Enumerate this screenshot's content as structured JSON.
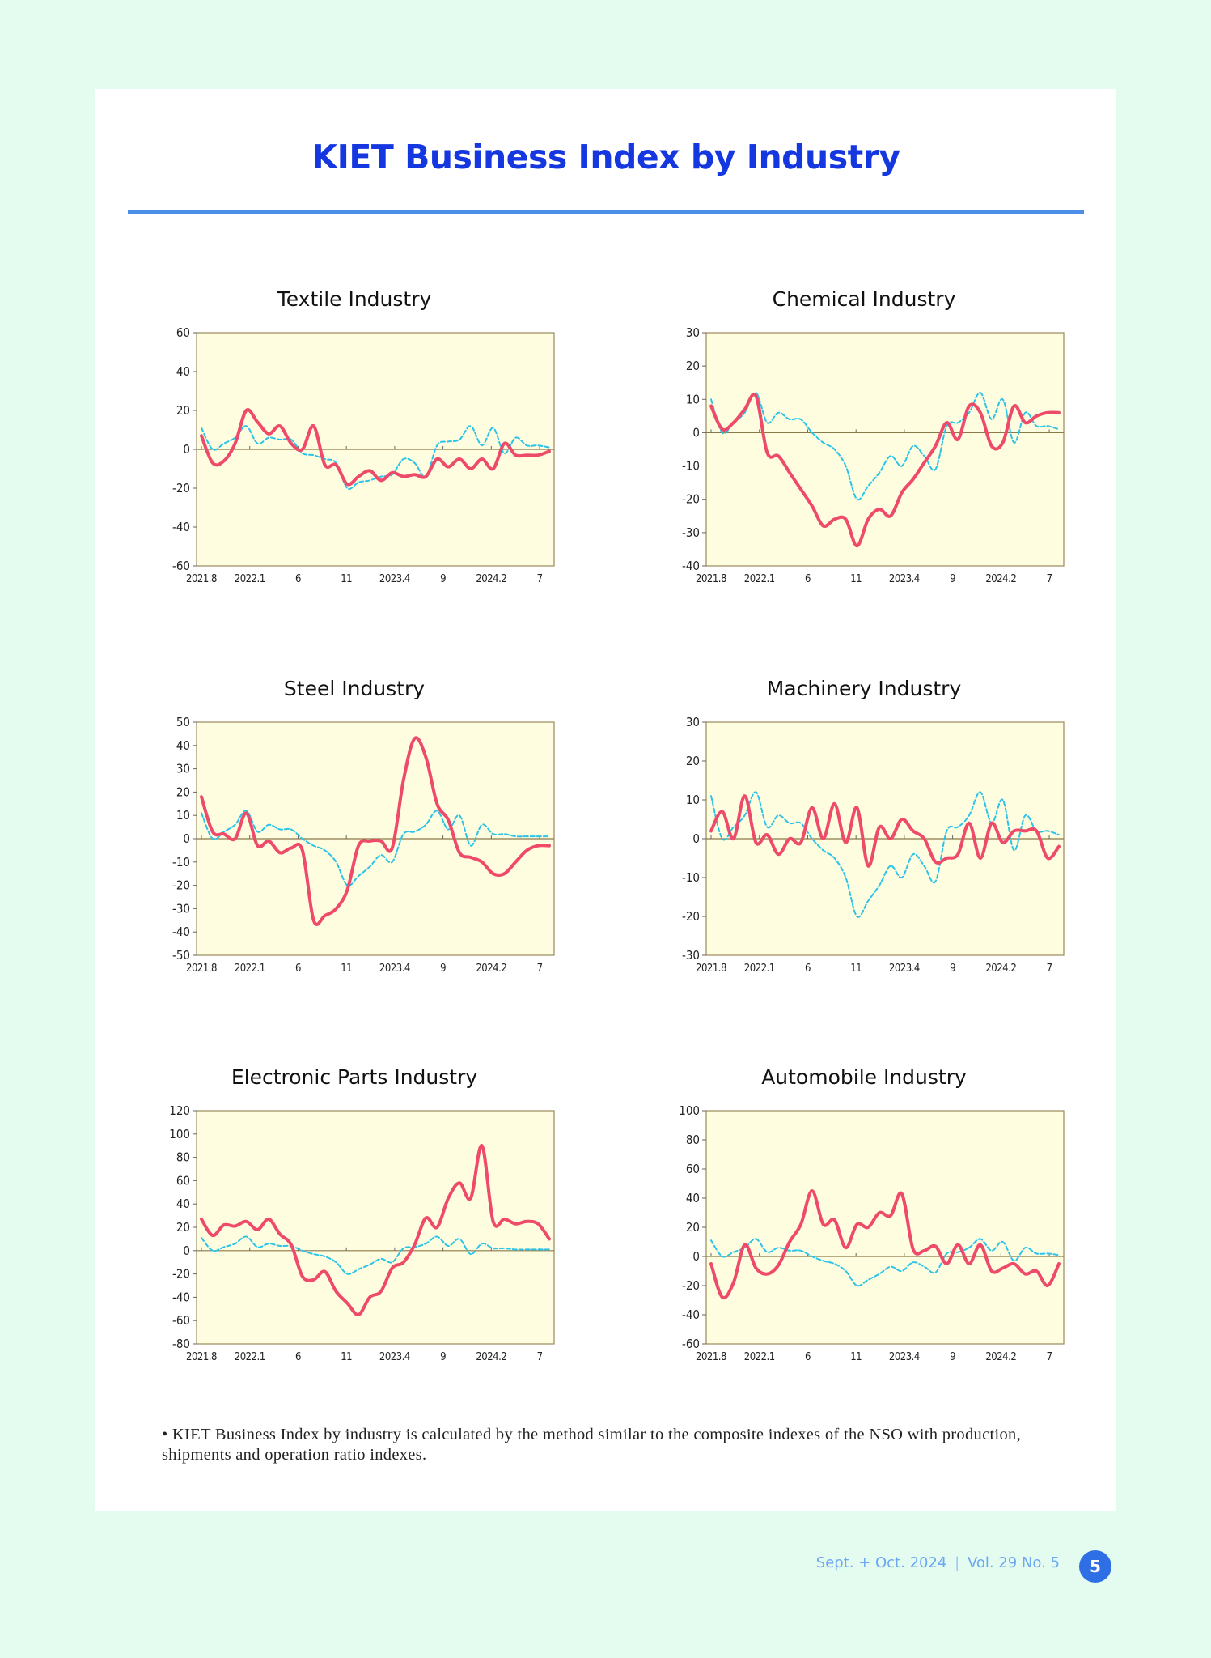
{
  "page": {
    "title": "KIET Business Index by Industry",
    "footnote_bullet": "•",
    "footnote": "KIET Business Index by industry is calculated by the method similar to the composite indexes of the NSO with production, shipments and operation ratio indexes.",
    "footer_issue": "Sept. + Oct. 2024",
    "footer_vol": "Vol. 29  No. 5",
    "page_number": "5",
    "colors": {
      "background": "#e4fbf0",
      "title": "#1537e0",
      "rule": "#4a8ee8",
      "plot_bg": "#fffde0",
      "series_red": "#ee4a6a",
      "series_cyan": "#2bc4e8",
      "badge": "#2f6fe6"
    }
  },
  "chart_data": [
    {
      "type": "line",
      "title": "Textile Industry",
      "x_tick_labels": [
        "2021.8",
        "2022.1",
        "6",
        "11",
        "2023.4",
        "9",
        "2024.2",
        "7"
      ],
      "x_tick_index": [
        0,
        5,
        10,
        15,
        20,
        25,
        30,
        35
      ],
      "ylim": [
        -60,
        60
      ],
      "yticks": [
        -60,
        -40,
        -20,
        0,
        20,
        40,
        60
      ],
      "series": [
        {
          "color": "#ee4a6a",
          "values": [
            7,
            -7,
            -6,
            3,
            20,
            14,
            8,
            12,
            3,
            0,
            12,
            -8,
            -8,
            -18,
            -14,
            -11,
            -16,
            -12,
            -14,
            -13,
            -14,
            -5,
            -9,
            -5,
            -10,
            -5,
            -10,
            3,
            -3,
            -3,
            -3,
            -1
          ]
        },
        {
          "color": "#2bc4e8",
          "values": [
            11,
            0,
            3,
            6,
            12,
            3,
            6,
            5,
            5,
            -2,
            -3,
            -5,
            -7,
            -20,
            -17,
            -16,
            -14,
            -13,
            -5,
            -7,
            -14,
            2,
            4,
            5,
            12,
            2,
            11,
            -2,
            6,
            2,
            2,
            1
          ]
        }
      ]
    },
    {
      "type": "line",
      "title": "Chemical Industry",
      "x_tick_labels": [
        "2021.8",
        "2022.1",
        "6",
        "11",
        "2023.4",
        "9",
        "2024.2",
        "7"
      ],
      "x_tick_index": [
        0,
        5,
        10,
        15,
        20,
        25,
        30,
        35
      ],
      "ylim": [
        -40,
        30
      ],
      "yticks": [
        -40,
        -30,
        -20,
        -10,
        0,
        10,
        20,
        30
      ],
      "series": [
        {
          "color": "#ee4a6a",
          "values": [
            8,
            1,
            3,
            7,
            11,
            -6,
            -7,
            -12,
            -17,
            -22,
            -28,
            -26,
            -26,
            -34,
            -26,
            -23,
            -25,
            -18,
            -14,
            -9,
            -4,
            3,
            -2,
            8,
            6,
            -4,
            -3,
            8,
            3,
            5,
            6,
            6
          ]
        },
        {
          "color": "#2bc4e8",
          "values": [
            10,
            0,
            3,
            6,
            12,
            3,
            6,
            4,
            4,
            0,
            -3,
            -5,
            -10,
            -20,
            -16,
            -12,
            -7,
            -10,
            -4,
            -7,
            -11,
            2,
            3,
            6,
            12,
            4,
            10,
            -3,
            6,
            2,
            2,
            1
          ]
        }
      ]
    },
    {
      "type": "line",
      "title": "Steel Industry",
      "x_tick_labels": [
        "2021.8",
        "2022.1",
        "6",
        "11",
        "2023.4",
        "9",
        "2024.2",
        "7"
      ],
      "x_tick_index": [
        0,
        5,
        10,
        15,
        20,
        25,
        30,
        35
      ],
      "ylim": [
        -50,
        50
      ],
      "yticks": [
        -50,
        -40,
        -30,
        -20,
        -10,
        0,
        10,
        20,
        30,
        40,
        50
      ],
      "series": [
        {
          "color": "#ee4a6a",
          "values": [
            18,
            3,
            2,
            0,
            11,
            -3,
            -1,
            -6,
            -4,
            -5,
            -35,
            -33,
            -30,
            -22,
            -3,
            -1,
            -1,
            -4,
            25,
            43,
            35,
            15,
            8,
            -6,
            -8,
            -10,
            -15,
            -15,
            -10,
            -5,
            -3,
            -3
          ]
        },
        {
          "color": "#2bc4e8",
          "values": [
            11,
            0,
            3,
            6,
            12,
            3,
            6,
            4,
            4,
            0,
            -3,
            -5,
            -10,
            -20,
            -16,
            -12,
            -7,
            -10,
            2,
            3,
            6,
            12,
            4,
            10,
            -3,
            6,
            2,
            2,
            1,
            1,
            1,
            1
          ]
        }
      ]
    },
    {
      "type": "line",
      "title": "Machinery Industry",
      "x_tick_labels": [
        "2021.8",
        "2022.1",
        "6",
        "11",
        "2023.4",
        "9",
        "2024.2",
        "7"
      ],
      "x_tick_index": [
        0,
        5,
        10,
        15,
        20,
        25,
        30,
        35
      ],
      "ylim": [
        -30,
        30
      ],
      "yticks": [
        -30,
        -20,
        -10,
        0,
        10,
        20,
        30
      ],
      "series": [
        {
          "color": "#ee4a6a",
          "values": [
            2,
            7,
            0,
            11,
            -1,
            1,
            -4,
            0,
            -1,
            8,
            0,
            9,
            -1,
            8,
            -7,
            3,
            0,
            5,
            2,
            0,
            -6,
            -5,
            -4,
            4,
            -5,
            4,
            -1,
            2,
            2,
            2,
            -5,
            -2
          ]
        },
        {
          "color": "#2bc4e8",
          "values": [
            11,
            0,
            3,
            6,
            12,
            3,
            6,
            4,
            4,
            0,
            -3,
            -5,
            -10,
            -20,
            -16,
            -12,
            -7,
            -10,
            -4,
            -7,
            -11,
            2,
            3,
            6,
            12,
            4,
            10,
            -3,
            6,
            2,
            2,
            1
          ]
        }
      ]
    },
    {
      "type": "line",
      "title": "Electronic Parts Industry",
      "x_tick_labels": [
        "2021.8",
        "2022.1",
        "6",
        "11",
        "2023.4",
        "9",
        "2024.2",
        "7"
      ],
      "x_tick_index": [
        0,
        5,
        10,
        15,
        20,
        25,
        30,
        35
      ],
      "ylim": [
        -80,
        120
      ],
      "yticks": [
        -80,
        -60,
        -40,
        -20,
        0,
        20,
        40,
        60,
        80,
        100,
        120
      ],
      "series": [
        {
          "color": "#ee4a6a",
          "values": [
            27,
            13,
            22,
            21,
            25,
            18,
            27,
            14,
            5,
            -22,
            -25,
            -18,
            -35,
            -45,
            -55,
            -40,
            -35,
            -15,
            -10,
            5,
            28,
            20,
            45,
            58,
            45,
            90,
            25,
            27,
            23,
            25,
            23,
            10
          ]
        },
        {
          "color": "#2bc4e8",
          "values": [
            11,
            0,
            3,
            6,
            12,
            3,
            6,
            4,
            4,
            0,
            -3,
            -5,
            -10,
            -20,
            -16,
            -12,
            -7,
            -10,
            2,
            3,
            6,
            12,
            4,
            10,
            -3,
            6,
            2,
            2,
            1,
            1,
            1,
            1
          ]
        }
      ]
    },
    {
      "type": "line",
      "title": "Automobile Industry",
      "x_tick_labels": [
        "2021.8",
        "2022.1",
        "6",
        "11",
        "2023.4",
        "9",
        "2024.2",
        "7"
      ],
      "x_tick_index": [
        0,
        5,
        10,
        15,
        20,
        25,
        30,
        35
      ],
      "ylim": [
        -60,
        100
      ],
      "yticks": [
        -60,
        -40,
        -20,
        0,
        20,
        40,
        60,
        80,
        100
      ],
      "series": [
        {
          "color": "#ee4a6a",
          "values": [
            -5,
            -28,
            -18,
            8,
            -8,
            -12,
            -6,
            10,
            22,
            45,
            22,
            25,
            6,
            22,
            20,
            30,
            28,
            43,
            5,
            4,
            7,
            -5,
            8,
            -5,
            8,
            -10,
            -8,
            -5,
            -12,
            -10,
            -20,
            -5
          ]
        },
        {
          "color": "#2bc4e8",
          "values": [
            11,
            0,
            3,
            6,
            12,
            3,
            6,
            4,
            4,
            0,
            -3,
            -5,
            -10,
            -20,
            -16,
            -12,
            -7,
            -10,
            -4,
            -7,
            -11,
            2,
            3,
            6,
            12,
            4,
            10,
            -3,
            6,
            2,
            2,
            1
          ]
        }
      ]
    }
  ]
}
